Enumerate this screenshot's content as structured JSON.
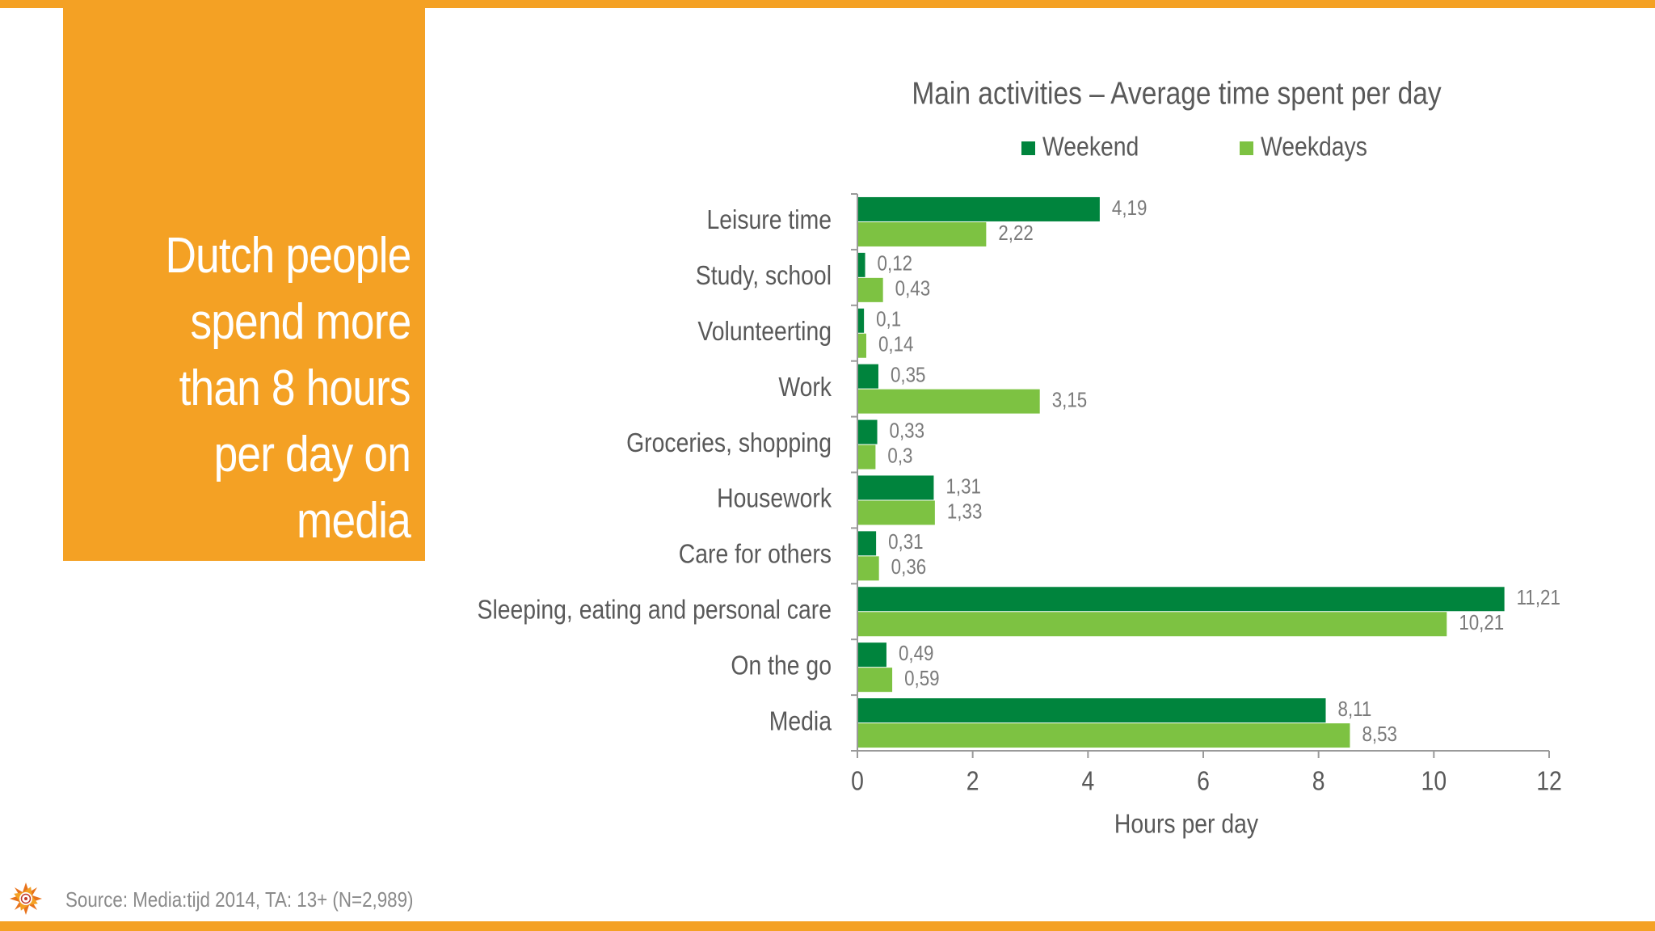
{
  "headline": {
    "lines": [
      "Dutch people",
      "spend more",
      "than 8 hours",
      "per day on",
      "media"
    ]
  },
  "source": "Source: Media:tijd 2014, TA: 13+ (N=2,989)",
  "logo_icon": "sun-emblem-icon",
  "colors": {
    "accent_orange": "#f4a124",
    "weekend_green": "#00843d",
    "weekdays_green": "#7dc242",
    "text_gray": "#595959",
    "label_gray": "#7a7a7a"
  },
  "chart_data": {
    "type": "bar",
    "orientation": "horizontal",
    "title": "Main activities – Average time spent per day",
    "xlabel": "Hours per day",
    "ylabel": "",
    "xlim": [
      0,
      12
    ],
    "xticks": [
      "0",
      "2",
      "4",
      "6",
      "8",
      "10",
      "12"
    ],
    "legend_position": "top",
    "grid": false,
    "categories": [
      "Leisure time",
      "Study, school",
      "Volunteerting",
      "Work",
      "Groceries, shopping",
      "Housework",
      "Care for others",
      "Sleeping, eating and personal care",
      "On the go",
      "Media"
    ],
    "series": [
      {
        "name": "Weekend",
        "color": "#00843d",
        "values": [
          4.19,
          0.12,
          0.1,
          0.35,
          0.33,
          1.31,
          0.31,
          11.21,
          0.49,
          8.11
        ],
        "labels": [
          "4,19",
          "0,12",
          "0,1",
          "0,35",
          "0,33",
          "1,31",
          "0,31",
          "11,21",
          "0,49",
          "8,11"
        ]
      },
      {
        "name": "Weekdays",
        "color": "#7dc242",
        "values": [
          2.22,
          0.43,
          0.14,
          3.15,
          0.3,
          1.33,
          0.36,
          10.21,
          0.59,
          8.53
        ],
        "labels": [
          "2,22",
          "0,43",
          "0,14",
          "3,15",
          "0,3",
          "1,33",
          "0,36",
          "10,21",
          "0,59",
          "8,53"
        ]
      }
    ]
  }
}
